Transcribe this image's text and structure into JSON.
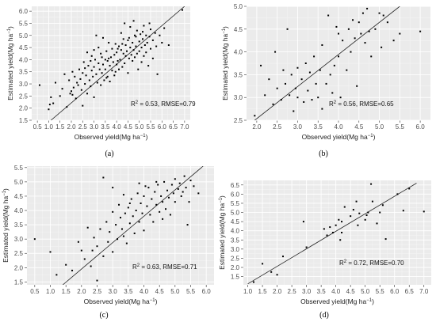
{
  "chart_data": [
    {
      "type": "scatter",
      "subfigure_label": "(a)",
      "xlabel_main": "Observed yield(Mg ha",
      "ylabel_main": "Estimated yield(Mg ha",
      "unit_superscript": "−1",
      "unit_close": ")",
      "annotation_r2": "R",
      "annotation_r2_sup": "2",
      "annotation_rest": " = 0.53, RMSE=0.79",
      "xlim": [
        0.25,
        7.25
      ],
      "ylim": [
        1.5,
        6.2
      ],
      "xticks": [
        "0.5",
        "1.0",
        "1.5",
        "2.0",
        "2.5",
        "3.0",
        "3.5",
        "4.0",
        "4.5",
        "5.0",
        "5.5",
        "6.0",
        "6.5",
        "7.0"
      ],
      "yticks": [
        "1.5",
        "2.0",
        "2.5",
        "3.0",
        "3.5",
        "4.0",
        "4.5",
        "5.0",
        "5.5",
        "6.0"
      ],
      "fit_line": [
        [
          1.1,
          1.5
        ],
        [
          7.0,
          6.2
        ]
      ],
      "grid": true,
      "points": [
        [
          0.6,
          2.95
        ],
        [
          1.0,
          1.95
        ],
        [
          1.05,
          2.15
        ],
        [
          1.1,
          2.45
        ],
        [
          1.2,
          2.2
        ],
        [
          1.3,
          3.05
        ],
        [
          1.5,
          2.5
        ],
        [
          1.6,
          2.8
        ],
        [
          1.7,
          3.4
        ],
        [
          1.8,
          2.05
        ],
        [
          1.9,
          3.15
        ],
        [
          1.95,
          2.6
        ],
        [
          2.0,
          2.7
        ],
        [
          2.05,
          3.5
        ],
        [
          2.1,
          2.85
        ],
        [
          2.15,
          3.3
        ],
        [
          2.2,
          2.4
        ],
        [
          2.25,
          3.05
        ],
        [
          2.3,
          2.95
        ],
        [
          2.35,
          3.6
        ],
        [
          2.4,
          3.2
        ],
        [
          2.45,
          2.75
        ],
        [
          2.5,
          3.45
        ],
        [
          2.5,
          2.1
        ],
        [
          2.55,
          3.9
        ],
        [
          2.6,
          3.0
        ],
        [
          2.65,
          3.35
        ],
        [
          2.7,
          4.3
        ],
        [
          2.7,
          2.6
        ],
        [
          2.75,
          3.75
        ],
        [
          2.8,
          3.15
        ],
        [
          2.85,
          2.9
        ],
        [
          2.9,
          3.55
        ],
        [
          2.9,
          4.15
        ],
        [
          2.95,
          3.3
        ],
        [
          3.0,
          3.7
        ],
        [
          3.0,
          2.45
        ],
        [
          3.05,
          4.0
        ],
        [
          3.1,
          3.4
        ],
        [
          3.1,
          5.0
        ],
        [
          3.15,
          3.05
        ],
        [
          3.2,
          3.85
        ],
        [
          3.2,
          4.5
        ],
        [
          3.25,
          3.6
        ],
        [
          3.3,
          2.95
        ],
        [
          3.3,
          4.25
        ],
        [
          3.35,
          3.45
        ],
        [
          3.4,
          3.8
        ],
        [
          3.4,
          4.9
        ],
        [
          3.45,
          3.15
        ],
        [
          3.5,
          4.0
        ],
        [
          3.5,
          3.6
        ],
        [
          3.55,
          4.35
        ],
        [
          3.6,
          3.3
        ],
        [
          3.6,
          3.95
        ],
        [
          3.65,
          4.7
        ],
        [
          3.7,
          3.75
        ],
        [
          3.7,
          3.1
        ],
        [
          3.75,
          4.1
        ],
        [
          3.8,
          3.55
        ],
        [
          3.8,
          4.45
        ],
        [
          3.85,
          3.9
        ],
        [
          3.9,
          4.2
        ],
        [
          3.9,
          3.35
        ],
        [
          3.95,
          4.65
        ],
        [
          4.0,
          3.8
        ],
        [
          4.0,
          4.3
        ],
        [
          4.05,
          3.95
        ],
        [
          4.1,
          4.55
        ],
        [
          4.1,
          3.6
        ],
        [
          4.15,
          4.0
        ],
        [
          4.2,
          4.4
        ],
        [
          4.2,
          5.1
        ],
        [
          4.25,
          3.7
        ],
        [
          4.3,
          4.25
        ],
        [
          4.3,
          4.85
        ],
        [
          4.35,
          3.85
        ],
        [
          4.4,
          4.6
        ],
        [
          4.4,
          4.15
        ],
        [
          4.45,
          4.35
        ],
        [
          4.5,
          3.45
        ],
        [
          4.5,
          4.8
        ],
        [
          4.55,
          4.05
        ],
        [
          4.6,
          4.5
        ],
        [
          4.6,
          5.35
        ],
        [
          4.65,
          4.2
        ],
        [
          4.7,
          4.7
        ],
        [
          4.7,
          3.95
        ],
        [
          4.75,
          4.4
        ],
        [
          4.8,
          5.0
        ],
        [
          4.8,
          4.1
        ],
        [
          4.85,
          4.55
        ],
        [
          4.9,
          4.25
        ],
        [
          4.9,
          5.2
        ],
        [
          4.95,
          3.6
        ],
        [
          5.0,
          4.75
        ],
        [
          5.0,
          4.35
        ],
        [
          5.05,
          5.05
        ],
        [
          5.1,
          4.5
        ],
        [
          5.1,
          3.9
        ],
        [
          5.15,
          4.85
        ],
        [
          5.2,
          4.15
        ],
        [
          5.2,
          5.4
        ],
        [
          5.25,
          4.6
        ],
        [
          5.3,
          4.3
        ],
        [
          5.3,
          5.0
        ],
        [
          5.35,
          4.7
        ],
        [
          5.4,
          3.75
        ],
        [
          5.45,
          4.95
        ],
        [
          5.5,
          4.45
        ],
        [
          5.5,
          5.25
        ],
        [
          5.6,
          4.8
        ],
        [
          5.6,
          4.05
        ],
        [
          5.7,
          5.1
        ],
        [
          5.75,
          4.55
        ],
        [
          5.8,
          3.4
        ],
        [
          5.9,
          5.0
        ],
        [
          6.0,
          4.7
        ],
        [
          6.1,
          5.3
        ],
        [
          6.3,
          4.6
        ],
        [
          6.9,
          6.05
        ],
        [
          2.05,
          2.55
        ],
        [
          2.6,
          3.65
        ],
        [
          3.0,
          4.4
        ],
        [
          3.35,
          4.1
        ],
        [
          3.65,
          4.05
        ],
        [
          3.95,
          3.5
        ],
        [
          4.25,
          4.65
        ],
        [
          4.55,
          4.9
        ],
        [
          4.85,
          4.95
        ],
        [
          5.15,
          5.15
        ],
        [
          5.45,
          5.5
        ],
        [
          2.85,
          3.95
        ],
        [
          3.55,
          3.25
        ],
        [
          4.05,
          4.45
        ],
        [
          4.35,
          5.5
        ],
        [
          4.75,
          5.6
        ]
      ]
    },
    {
      "type": "scatter",
      "subfigure_label": "(b)",
      "xlabel_main": "Observed yield(Mg ha",
      "ylabel_main": "Estimated yield(Mg ha",
      "unit_superscript": "−1",
      "unit_close": ")",
      "annotation_r2": "R",
      "annotation_r2_sup": "2",
      "annotation_rest": " = 0.56, RMSE=0.65",
      "xlim": [
        1.75,
        6.25
      ],
      "ylim": [
        2.5,
        5.0
      ],
      "xticks": [
        "2.0",
        "2.5",
        "3.0",
        "3.5",
        "4.0",
        "4.5",
        "5.0",
        "5.5",
        "6.0"
      ],
      "yticks": [
        "2.5",
        "3.0",
        "3.5",
        "4.0",
        "4.5",
        "5.0"
      ],
      "fit_line": [
        [
          1.95,
          2.5
        ],
        [
          5.5,
          5.0
        ]
      ],
      "grid": true,
      "points": [
        [
          1.95,
          2.6
        ],
        [
          2.1,
          3.7
        ],
        [
          2.2,
          3.05
        ],
        [
          2.3,
          3.4
        ],
        [
          2.4,
          2.85
        ],
        [
          2.45,
          4.0
        ],
        [
          2.5,
          3.2
        ],
        [
          2.6,
          2.95
        ],
        [
          2.65,
          3.6
        ],
        [
          2.7,
          3.3
        ],
        [
          2.75,
          4.5
        ],
        [
          2.8,
          3.05
        ],
        [
          2.85,
          3.5
        ],
        [
          2.9,
          2.7
        ],
        [
          2.95,
          3.2
        ],
        [
          3.0,
          3.65
        ],
        [
          3.0,
          3.0
        ],
        [
          3.1,
          3.4
        ],
        [
          3.15,
          2.9
        ],
        [
          3.2,
          3.75
        ],
        [
          3.25,
          3.15
        ],
        [
          3.3,
          3.55
        ],
        [
          3.35,
          2.95
        ],
        [
          3.4,
          3.9
        ],
        [
          3.45,
          3.3
        ],
        [
          3.5,
          3.0
        ],
        [
          3.55,
          3.6
        ],
        [
          3.6,
          4.15
        ],
        [
          3.6,
          2.75
        ],
        [
          3.7,
          3.3
        ],
        [
          3.75,
          4.8
        ],
        [
          3.8,
          3.5
        ],
        [
          3.85,
          3.1
        ],
        [
          3.9,
          3.7
        ],
        [
          4.0,
          4.4
        ],
        [
          4.0,
          3.9
        ],
        [
          4.05,
          3.0
        ],
        [
          4.1,
          4.25
        ],
        [
          4.2,
          3.6
        ],
        [
          4.25,
          4.5
        ],
        [
          4.3,
          4.0
        ],
        [
          4.35,
          4.7
        ],
        [
          4.4,
          4.3
        ],
        [
          4.45,
          3.25
        ],
        [
          4.5,
          4.65
        ],
        [
          4.6,
          4.85
        ],
        [
          4.65,
          4.2
        ],
        [
          4.7,
          4.95
        ],
        [
          4.75,
          4.45
        ],
        [
          4.8,
          3.9
        ],
        [
          4.9,
          4.5
        ],
        [
          5.0,
          4.85
        ],
        [
          5.05,
          4.1
        ],
        [
          5.1,
          4.8
        ],
        [
          5.2,
          4.65
        ],
        [
          5.35,
          4.25
        ],
        [
          5.5,
          4.4
        ],
        [
          6.0,
          4.45
        ],
        [
          3.95,
          4.55
        ],
        [
          4.55,
          4.4
        ]
      ]
    },
    {
      "type": "scatter",
      "subfigure_label": "(c)",
      "xlabel_main": "Observed yield(Mg ha",
      "ylabel_main": "Estimated yield(Mg ha",
      "unit_superscript": "−1",
      "unit_close": ")",
      "annotation_r2": "R",
      "annotation_r2_sup": "2",
      "annotation_rest": " = 0.63, RMSE=0.71",
      "xlim": [
        0.25,
        6.25
      ],
      "ylim": [
        1.4,
        5.55
      ],
      "xticks": [
        "0.5",
        "1.0",
        "1.5",
        "2.0",
        "2.5",
        "3.0",
        "3.5",
        "4.0",
        "4.5",
        "5.0",
        "5.5",
        "6.0"
      ],
      "yticks": [
        "1.5",
        "2.0",
        "2.5",
        "3.0",
        "3.5",
        "4.0",
        "4.5",
        "5.0",
        "5.5"
      ],
      "fit_line": [
        [
          1.4,
          1.4
        ],
        [
          5.9,
          5.55
        ]
      ],
      "grid": true,
      "points": [
        [
          0.5,
          3.0
        ],
        [
          1.0,
          2.55
        ],
        [
          1.2,
          1.75
        ],
        [
          1.5,
          2.1
        ],
        [
          1.7,
          1.9
        ],
        [
          1.9,
          2.9
        ],
        [
          2.0,
          2.6
        ],
        [
          2.1,
          2.3
        ],
        [
          2.2,
          3.4
        ],
        [
          2.3,
          2.05
        ],
        [
          2.4,
          3.05
        ],
        [
          2.5,
          2.75
        ],
        [
          2.5,
          1.55
        ],
        [
          2.6,
          3.35
        ],
        [
          2.7,
          5.15
        ],
        [
          2.7,
          2.4
        ],
        [
          2.8,
          3.6
        ],
        [
          2.85,
          2.9
        ],
        [
          2.9,
          3.25
        ],
        [
          3.0,
          3.95
        ],
        [
          3.0,
          2.55
        ],
        [
          3.1,
          3.5
        ],
        [
          3.15,
          3.0
        ],
        [
          3.2,
          4.2
        ],
        [
          3.25,
          3.75
        ],
        [
          3.3,
          3.35
        ],
        [
          3.35,
          4.55
        ],
        [
          3.4,
          3.9
        ],
        [
          3.45,
          2.85
        ],
        [
          3.5,
          4.1
        ],
        [
          3.55,
          3.55
        ],
        [
          3.6,
          4.4
        ],
        [
          3.65,
          3.8
        ],
        [
          3.7,
          3.2
        ],
        [
          3.75,
          4.0
        ],
        [
          3.8,
          4.6
        ],
        [
          3.85,
          3.6
        ],
        [
          3.9,
          4.25
        ],
        [
          3.95,
          3.9
        ],
        [
          4.0,
          4.5
        ],
        [
          4.0,
          3.3
        ],
        [
          4.1,
          4.15
        ],
        [
          4.15,
          4.8
        ],
        [
          4.2,
          3.85
        ],
        [
          4.25,
          4.4
        ],
        [
          4.3,
          3.6
        ],
        [
          4.35,
          4.65
        ],
        [
          4.4,
          4.2
        ],
        [
          4.45,
          4.9
        ],
        [
          4.5,
          3.95
        ],
        [
          4.55,
          4.5
        ],
        [
          4.6,
          4.3
        ],
        [
          4.65,
          5.0
        ],
        [
          4.7,
          4.05
        ],
        [
          4.75,
          4.7
        ],
        [
          4.8,
          4.45
        ],
        [
          4.85,
          3.85
        ],
        [
          4.9,
          4.9
        ],
        [
          4.95,
          4.6
        ],
        [
          5.0,
          5.1
        ],
        [
          5.0,
          4.3
        ],
        [
          5.1,
          4.75
        ],
        [
          5.15,
          4.95
        ],
        [
          5.2,
          4.5
        ],
        [
          5.3,
          5.2
        ],
        [
          5.35,
          4.8
        ],
        [
          5.4,
          3.5
        ],
        [
          5.5,
          5.05
        ],
        [
          5.6,
          4.85
        ],
        [
          5.75,
          4.6
        ],
        [
          3.0,
          4.8
        ],
        [
          3.55,
          4.25
        ],
        [
          4.05,
          4.85
        ],
        [
          4.6,
          3.7
        ],
        [
          5.25,
          4.65
        ],
        [
          2.35,
          2.6
        ],
        [
          3.35,
          3.1
        ],
        [
          3.85,
          4.95
        ],
        [
          4.4,
          5.0
        ],
        [
          5.45,
          4.3
        ]
      ]
    },
    {
      "type": "scatter",
      "subfigure_label": "(d)",
      "xlabel_main": "Observed yield(Mg ha",
      "ylabel_main": "Estimated yield(Mg ha",
      "unit_superscript": "−1",
      "unit_close": ")",
      "annotation_r2": "R",
      "annotation_r2_sup": "2",
      "annotation_rest": " = 0.72, RMSE=0.70",
      "xlim": [
        0.85,
        7.25
      ],
      "ylim": [
        1.05,
        6.75
      ],
      "xticks": [
        "1.0",
        "1.5",
        "2.0",
        "2.5",
        "3.0",
        "3.5",
        "4.0",
        "4.5",
        "5.0",
        "5.5",
        "6.0",
        "6.5",
        "7.0"
      ],
      "yticks": [
        "1.5",
        "2.0",
        "2.5",
        "3.0",
        "3.5",
        "4.0",
        "4.5",
        "5.0",
        "5.5",
        "6.0",
        "6.5"
      ],
      "fit_line": [
        [
          1.0,
          1.1
        ],
        [
          6.75,
          6.6
        ]
      ],
      "grid": true,
      "points": [
        [
          1.2,
          1.2
        ],
        [
          1.5,
          2.2
        ],
        [
          1.8,
          1.75
        ],
        [
          2.0,
          1.6
        ],
        [
          2.2,
          2.6
        ],
        [
          2.9,
          4.5
        ],
        [
          3.0,
          3.1
        ],
        [
          3.6,
          4.1
        ],
        [
          3.7,
          3.75
        ],
        [
          3.8,
          4.2
        ],
        [
          3.9,
          3.9
        ],
        [
          4.0,
          4.3
        ],
        [
          4.1,
          4.6
        ],
        [
          4.15,
          3.5
        ],
        [
          4.2,
          3.9
        ],
        [
          4.3,
          5.3
        ],
        [
          4.5,
          4.8
        ],
        [
          4.7,
          5.6
        ],
        [
          4.75,
          4.3
        ],
        [
          4.8,
          4.95
        ],
        [
          5.0,
          4.6
        ],
        [
          5.05,
          4.85
        ],
        [
          5.1,
          5.0
        ],
        [
          5.2,
          6.55
        ],
        [
          5.25,
          5.6
        ],
        [
          5.4,
          4.4
        ],
        [
          5.5,
          5.0
        ],
        [
          5.6,
          5.4
        ],
        [
          5.7,
          3.55
        ],
        [
          6.1,
          6.0
        ],
        [
          6.3,
          5.1
        ],
        [
          6.5,
          6.3
        ],
        [
          7.0,
          5.05
        ],
        [
          4.2,
          4.5
        ],
        [
          4.6,
          5.15
        ]
      ]
    }
  ]
}
